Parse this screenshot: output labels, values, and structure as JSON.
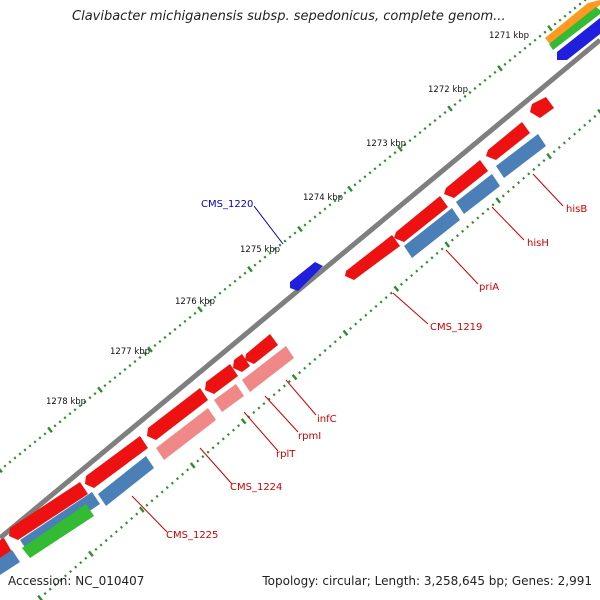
{
  "title": "Clavibacter michiganensis subsp. sepedonicus, complete genom...",
  "footer": {
    "accession": "Accession: NC_010407",
    "summary": "Topology: circular; Length: 3,258,645 bp; Genes: 2,991"
  },
  "colors": {
    "backbone": "#7f7f7f",
    "tick": "#2e8b2e",
    "cds_forward": "#1f1fdd",
    "cds_reverse": "#ee1111",
    "cds_reverse_light": "#f08888",
    "rrna_blue": "#4a7fb8",
    "green_feature": "#33bb33",
    "orange_feature": "#ff9922",
    "label_blue": "#0000cc",
    "label_red": "#cc0000"
  },
  "scale_labels": [
    "1271 kbp",
    "1272 kbp",
    "1273 kbp",
    "1274 kbp",
    "1275 kbp",
    "1276 kbp",
    "1277 kbp",
    "1278 kbp"
  ],
  "gene_labels": [
    {
      "text": "CMS_1220",
      "strand": "forward"
    },
    {
      "text": "hisB",
      "strand": "reverse"
    },
    {
      "text": "hisH",
      "strand": "reverse"
    },
    {
      "text": "priA",
      "strand": "reverse"
    },
    {
      "text": "CMS_1219",
      "strand": "reverse"
    },
    {
      "text": "infC",
      "strand": "reverse"
    },
    {
      "text": "rpmI",
      "strand": "reverse"
    },
    {
      "text": "rplT",
      "strand": "reverse"
    },
    {
      "text": "CMS_1224",
      "strand": "reverse"
    },
    {
      "text": "CMS_1225",
      "strand": "reverse"
    }
  ]
}
